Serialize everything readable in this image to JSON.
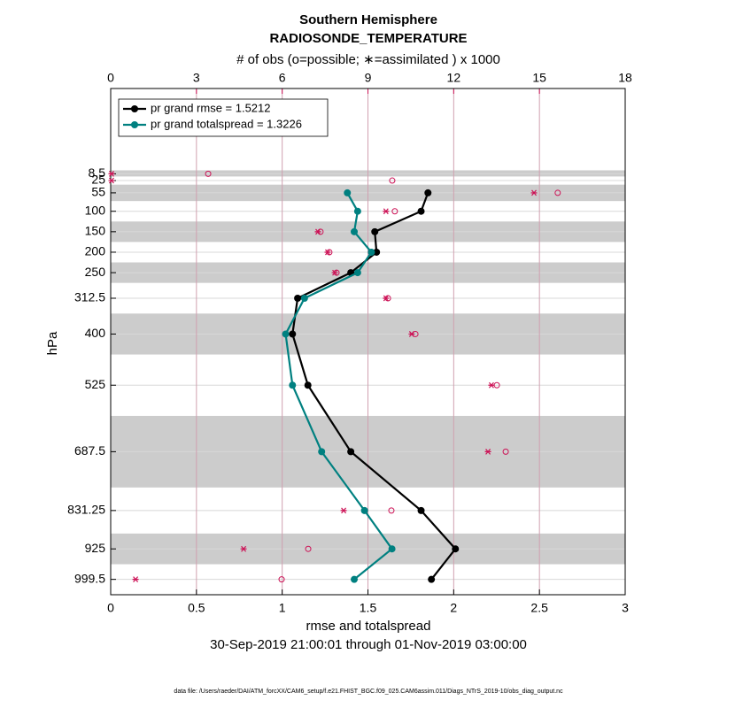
{
  "chart_data": {
    "type": "profile",
    "title": "Southern Hemisphere",
    "subtitle": "RADIOSONDE_TEMPERATURE",
    "x2label": "# of obs (o=possible; ∗=assimilated ) x 1000",
    "xlabel": "rmse and totalspread",
    "ylabel": "hPa",
    "date_range": "30-Sep-2019 21:00:01 through 01-Nov-2019 03:00:00",
    "footnote": "data file: /Users/raeder/DAI/ATM_forcXX/CAM6_setup/f.e21.FHIST_BGC.f09_025.CAM6assim.011/Diags_NTrS_2019-10/obs_diag_output.nc",
    "levels": [
      8.5,
      25,
      55,
      100,
      150,
      200,
      250,
      312.5,
      400,
      525,
      687.5,
      831.25,
      925,
      999.5
    ],
    "shaded_layers": [
      [
        0,
        15
      ],
      [
        35,
        75
      ],
      [
        125,
        175
      ],
      [
        225,
        275
      ],
      [
        350,
        450
      ],
      [
        600,
        775
      ],
      [
        887.5,
        962.5
      ]
    ],
    "shade_color": "#cccccc",
    "series": [
      {
        "name": "pr grand rmse = 1.5212",
        "color": "#000000",
        "axis": "x",
        "values": [
          null,
          null,
          1.85,
          1.81,
          1.54,
          1.55,
          1.4,
          1.09,
          1.06,
          1.15,
          1.4,
          1.81,
          2.01,
          1.87
        ]
      },
      {
        "name": "pr grand totalspread = 1.3226",
        "color": "#008080",
        "axis": "x",
        "values": [
          null,
          null,
          1.38,
          1.44,
          1.42,
          1.52,
          1.44,
          1.13,
          1.02,
          1.06,
          1.23,
          1.48,
          1.64,
          1.42
        ]
      }
    ],
    "obs_series": [
      {
        "marker": "o",
        "color": "#cc1155",
        "axis": "x2",
        "values": [
          3.41,
          9.85,
          15.64,
          9.94,
          7.34,
          7.65,
          7.9,
          9.7,
          10.66,
          13.51,
          13.82,
          9.82,
          6.91,
          5.98
        ]
      },
      {
        "marker": "*",
        "color": "#cc1155",
        "axis": "x2",
        "values": [
          0.03,
          0.03,
          14.81,
          9.63,
          7.25,
          7.59,
          7.84,
          9.63,
          10.53,
          13.32,
          13.2,
          8.15,
          4.65,
          0.87
        ]
      }
    ],
    "xlim": [
      0,
      3
    ],
    "xticks": [
      0,
      0.5,
      1,
      1.5,
      2,
      2.5,
      3
    ],
    "x2lim": [
      0,
      18
    ],
    "x2ticks": [
      0,
      3,
      6,
      9,
      12,
      15,
      18
    ],
    "ylim": [
      1037,
      -200
    ],
    "yticks": [
      8.5,
      25,
      55,
      100,
      150,
      200,
      250,
      312.5,
      400,
      525,
      687.5,
      831.25,
      925,
      999.5
    ],
    "legend_color": "#0000dd",
    "x2_color": "#cc1155"
  }
}
